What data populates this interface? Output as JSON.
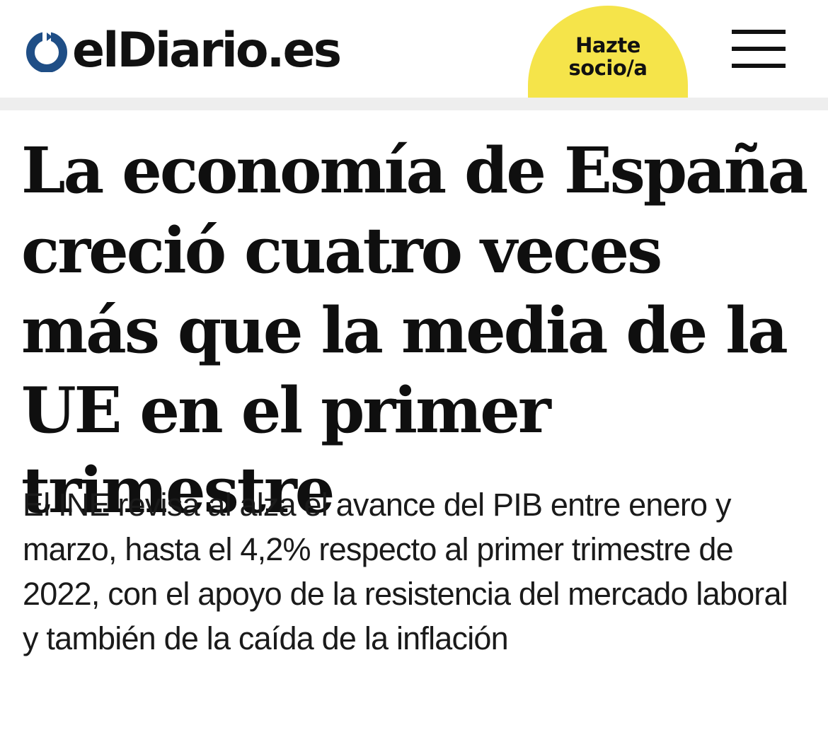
{
  "header": {
    "logo_text": "elDiario.es",
    "subscribe_label": "Hazte socio/a",
    "subscribe_color": "#f5e44a",
    "logo_mark_color": "#1f4e86",
    "menu_icon": "hamburger-menu-icon"
  },
  "article": {
    "headline": "La economía de España creció cuatro veces más que la media de la UE en el primer trimestre",
    "subheadline": "El INE revisa al alza el avance del PIB entre enero y marzo, hasta el 4,2% respecto al primer trimestre de 2022, con el apoyo de la resistencia del mercado laboral y también de la caída de la inflación"
  }
}
